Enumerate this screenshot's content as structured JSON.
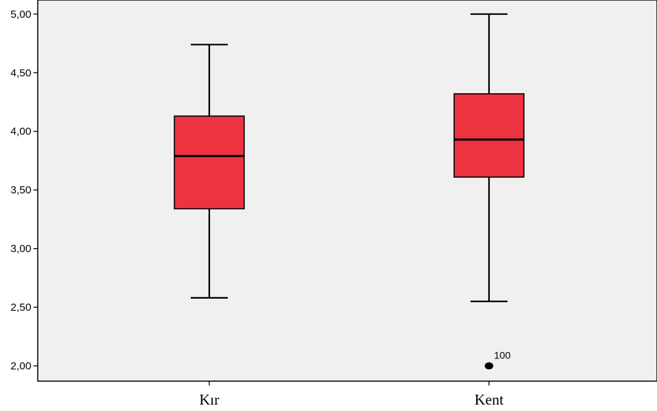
{
  "chart_data": {
    "type": "boxplot",
    "title": "",
    "xlabel": "",
    "ylabel": "",
    "ylim": [
      1.87,
      5.12
    ],
    "y_ticks": [
      2.0,
      2.5,
      3.0,
      3.5,
      4.0,
      4.5,
      5.0
    ],
    "y_tick_labels": [
      "2,00",
      "2,50",
      "3,00",
      "3,50",
      "4,00",
      "4,50",
      "5,00"
    ],
    "grid": false,
    "legend": "none",
    "categories": [
      "Kır",
      "Kent"
    ],
    "boxes": [
      {
        "category": "Kır",
        "whisker_low": 2.58,
        "q1": 3.34,
        "median": 3.79,
        "q3": 4.13,
        "whisker_high": 4.74,
        "outliers": []
      },
      {
        "category": "Kent",
        "whisker_low": 2.55,
        "q1": 3.61,
        "median": 3.93,
        "q3": 4.32,
        "whisker_high": 5.0,
        "outliers": [
          {
            "value": 2.0,
            "label": "100"
          }
        ]
      }
    ],
    "colors": {
      "box_fill": "#ee3340",
      "line": "#000000",
      "plot_background": "#f0f0f0"
    }
  }
}
